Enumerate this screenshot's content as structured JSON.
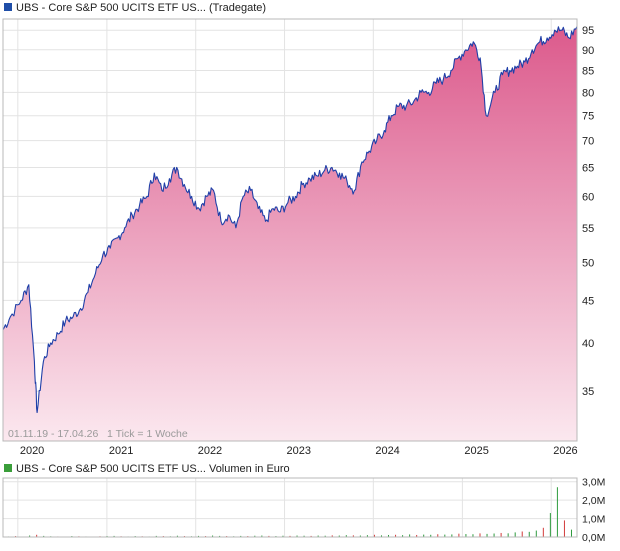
{
  "colors": {
    "line": "#1f3fa8",
    "area_top": "#dc5a8c",
    "area_bottom": "#fbe8ef",
    "price_legend_square": "#1f4ea8",
    "volume_legend_square": "#3a9e3a",
    "volume_up": "#2c9a3c",
    "volume_down": "#d23a3a",
    "grid": "#e3e3e3",
    "frame": "#b8b8b8",
    "text": "#222222",
    "info_text": "#9a9a9a"
  },
  "price_panel": {
    "legend": "UBS - Core S&P 500 UCITS ETF US... (Tradegate)",
    "info": "01.11.19 - 17.04.26   1 Tick = 1 Woche"
  },
  "volume_panel": {
    "legend": "UBS - Core S&P 500 UCITS ETF US... Volumen in Euro"
  },
  "chart_data": [
    {
      "type": "area",
      "y_scale": "log",
      "ylim": [
        30.5,
        98
      ],
      "xlim": [
        "2019-11-01",
        "2026-04-17"
      ],
      "grid": true,
      "y_ticks": [
        35,
        40,
        45,
        50,
        55,
        60,
        65,
        70,
        75,
        80,
        85,
        90,
        95
      ],
      "x_ticks": [
        "2020",
        "2021",
        "2022",
        "2023",
        "2024",
        "2025",
        "2026"
      ],
      "x": [
        "2019-11-01",
        "2019-12-01",
        "2020-01-15",
        "2020-02-15",
        "2020-03-09",
        "2020-03-20",
        "2020-04-15",
        "2020-05-15",
        "2020-06-15",
        "2020-07-15",
        "2020-08-15",
        "2020-09-15",
        "2020-10-15",
        "2020-11-15",
        "2020-12-15",
        "2021-01-15",
        "2021-02-15",
        "2021-03-15",
        "2021-04-15",
        "2021-05-15",
        "2021-06-15",
        "2021-07-15",
        "2021-08-15",
        "2021-09-15",
        "2021-10-15",
        "2021-11-15",
        "2021-12-15",
        "2022-01-15",
        "2022-02-15",
        "2022-03-15",
        "2022-04-15",
        "2022-05-15",
        "2022-06-15",
        "2022-07-15",
        "2022-08-15",
        "2022-09-15",
        "2022-10-15",
        "2022-11-15",
        "2022-12-15",
        "2023-01-15",
        "2023-02-15",
        "2023-03-15",
        "2023-04-15",
        "2023-05-15",
        "2023-06-15",
        "2023-07-15",
        "2023-08-15",
        "2023-09-15",
        "2023-10-15",
        "2023-11-15",
        "2023-12-15",
        "2024-01-15",
        "2024-02-15",
        "2024-03-15",
        "2024-04-15",
        "2024-05-15",
        "2024-06-15",
        "2024-07-15",
        "2024-08-15",
        "2024-09-15",
        "2024-10-15",
        "2024-11-15",
        "2024-12-15",
        "2025-01-15",
        "2025-02-15",
        "2025-03-15",
        "2025-04-09",
        "2025-05-15",
        "2025-06-15",
        "2025-07-15",
        "2025-08-15",
        "2025-09-15",
        "2025-10-15",
        "2025-11-15",
        "2025-12-15",
        "2026-01-15",
        "2026-02-15",
        "2026-03-15",
        "2026-04-17"
      ],
      "series": [
        {
          "values": [
            41.5,
            43,
            45,
            47,
            38,
            33,
            38,
            40,
            41,
            42.5,
            43,
            44,
            46,
            48.5,
            51,
            52,
            53.5,
            55,
            57,
            58.5,
            60,
            64,
            61,
            63,
            65,
            62,
            60,
            58,
            60,
            61,
            56,
            57,
            55,
            60,
            61,
            58,
            56,
            58,
            57.5,
            59,
            60,
            62,
            63,
            63.5,
            64.5,
            65,
            64,
            62.5,
            61,
            66,
            68,
            70,
            72,
            75,
            77,
            77,
            78,
            80,
            80,
            82,
            83,
            85,
            88,
            90,
            92,
            88,
            75,
            80,
            84,
            85,
            86,
            87,
            90,
            92,
            93,
            95,
            95,
            93,
            96
          ]
        }
      ]
    },
    {
      "type": "bar",
      "ylim": [
        0,
        3.2
      ],
      "y_unit": "Mio. Euro",
      "y_tick_labels": [
        "0,0M",
        "1,0M",
        "2,0M",
        "3,0M"
      ],
      "x_ticks": [
        "2020",
        "2021",
        "2022",
        "2023",
        "2024",
        "2025",
        "2026"
      ],
      "series": [
        {
          "name": "Volumen in Euro",
          "values": [
            0.03,
            0.05,
            0.02,
            0.08,
            0.12,
            0.06,
            0.04,
            0.03,
            0.02,
            0.05,
            0.04,
            0.03,
            0.02,
            0.04,
            0.05,
            0.06,
            0.04,
            0.03,
            0.05,
            0.04,
            0.03,
            0.06,
            0.05,
            0.04,
            0.07,
            0.05,
            0.04,
            0.06,
            0.05,
            0.08,
            0.06,
            0.05,
            0.04,
            0.06,
            0.05,
            0.07,
            0.08,
            0.06,
            0.05,
            0.07,
            0.06,
            0.08,
            0.07,
            0.06,
            0.08,
            0.07,
            0.09,
            0.08,
            0.1,
            0.09,
            0.08,
            0.1,
            0.12,
            0.09,
            0.11,
            0.12,
            0.1,
            0.14,
            0.11,
            0.13,
            0.12,
            0.15,
            0.13,
            0.14,
            0.18,
            0.16,
            0.15,
            0.2,
            0.17,
            0.19,
            0.22,
            0.2,
            0.25,
            0.3,
            0.28,
            0.35,
            0.5,
            1.3,
            2.7,
            0.9,
            0.4
          ]
        }
      ]
    }
  ]
}
